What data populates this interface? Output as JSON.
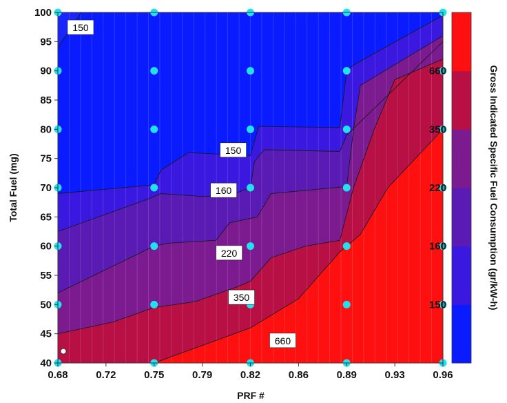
{
  "chart_data": {
    "type": "heatmap",
    "subtype": "filled-contour",
    "title": "",
    "xlabel": "PRF #",
    "ylabel": "Total Fuel (mg)",
    "colorbar_label": "Gross Indicated Specific Fuel Consumption (gr/kW-h)",
    "xlim": [
      0.68,
      0.96
    ],
    "ylim": [
      40,
      100
    ],
    "x_ticks": [
      "0.68",
      "0.72",
      "0.75",
      "0.79",
      "0.82",
      "0.86",
      "0.89",
      "0.93",
      "0.96"
    ],
    "x_tick_values": [
      0.68,
      0.715,
      0.75,
      0.785,
      0.82,
      0.855,
      0.89,
      0.925,
      0.96
    ],
    "y_ticks": [
      "40",
      "45",
      "50",
      "55",
      "60",
      "65",
      "70",
      "75",
      "80",
      "85",
      "90",
      "95",
      "100"
    ],
    "y_tick_values": [
      40,
      45,
      50,
      55,
      60,
      65,
      70,
      75,
      80,
      85,
      90,
      95,
      100
    ],
    "levels": [
      "150",
      "160",
      "220",
      "350",
      "660"
    ],
    "colorbar_ticks": [
      "150",
      "160",
      "220",
      "350",
      "660"
    ],
    "band_colors": [
      "#0a1cff",
      "#3a18e0",
      "#5a1ab4",
      "#7c1a90",
      "#b80f45",
      "#ff1010"
    ],
    "contours": [
      {
        "level": "150",
        "points": [
          [
            0.68,
            94
          ],
          [
            0.697,
            100
          ]
        ]
      },
      {
        "level": "150",
        "points": [
          [
            0.68,
            69
          ],
          [
            0.75,
            70.5
          ],
          [
            0.755,
            73
          ],
          [
            0.775,
            76
          ],
          [
            0.82,
            75.5
          ],
          [
            0.826,
            80.5
          ],
          [
            0.885,
            80.3
          ],
          [
            0.89,
            90
          ],
          [
            0.895,
            91
          ],
          [
            0.96,
            99.5
          ]
        ]
      },
      {
        "level": "160",
        "points": [
          [
            0.68,
            62.5
          ],
          [
            0.745,
            68
          ],
          [
            0.755,
            69
          ],
          [
            0.785,
            68.5
          ],
          [
            0.805,
            68.7
          ],
          [
            0.82,
            70
          ],
          [
            0.823,
            74.5
          ],
          [
            0.83,
            76.5
          ],
          [
            0.885,
            76.2
          ],
          [
            0.89,
            79
          ],
          [
            0.96,
            95
          ]
        ]
      },
      {
        "level": "220",
        "points": [
          [
            0.68,
            52
          ],
          [
            0.75,
            60
          ],
          [
            0.76,
            60.5
          ],
          [
            0.795,
            61
          ],
          [
            0.805,
            64
          ],
          [
            0.825,
            65
          ],
          [
            0.835,
            69
          ],
          [
            0.89,
            70.2
          ],
          [
            0.895,
            80
          ],
          [
            0.9,
            87.5
          ],
          [
            0.96,
            96
          ]
        ]
      },
      {
        "level": "350",
        "points": [
          [
            0.68,
            45
          ],
          [
            0.72,
            47
          ],
          [
            0.75,
            49.5
          ],
          [
            0.78,
            50.5
          ],
          [
            0.81,
            53
          ],
          [
            0.82,
            54
          ],
          [
            0.835,
            58
          ],
          [
            0.86,
            60
          ],
          [
            0.885,
            61
          ],
          [
            0.895,
            70
          ],
          [
            0.91,
            80
          ],
          [
            0.925,
            88.5
          ],
          [
            0.96,
            92
          ]
        ]
      },
      {
        "level": "660",
        "points": [
          [
            0.75,
            40
          ],
          [
            0.82,
            46
          ],
          [
            0.855,
            51
          ],
          [
            0.885,
            59
          ],
          [
            0.9,
            62
          ],
          [
            0.92,
            70
          ],
          [
            0.96,
            80
          ]
        ]
      }
    ],
    "contour_labels": [
      {
        "text": "150",
        "x": 0.689,
        "y": 97.4
      },
      {
        "text": "150",
        "x": 0.8,
        "y": 76.4
      },
      {
        "text": "160",
        "x": 0.793,
        "y": 69.5
      },
      {
        "text": "220",
        "x": 0.797,
        "y": 58.8
      },
      {
        "text": "350",
        "x": 0.806,
        "y": 51.2
      },
      {
        "text": "660",
        "x": 0.836,
        "y": 43.8
      }
    ],
    "data_points": {
      "x": [
        0.68,
        0.75,
        0.82,
        0.89,
        0.96
      ],
      "y": [
        40,
        50,
        60,
        70,
        80,
        90,
        100
      ],
      "color": "#22e1ee"
    },
    "marker": {
      "x": 0.684,
      "y": 42,
      "color": "#ffffff"
    }
  }
}
